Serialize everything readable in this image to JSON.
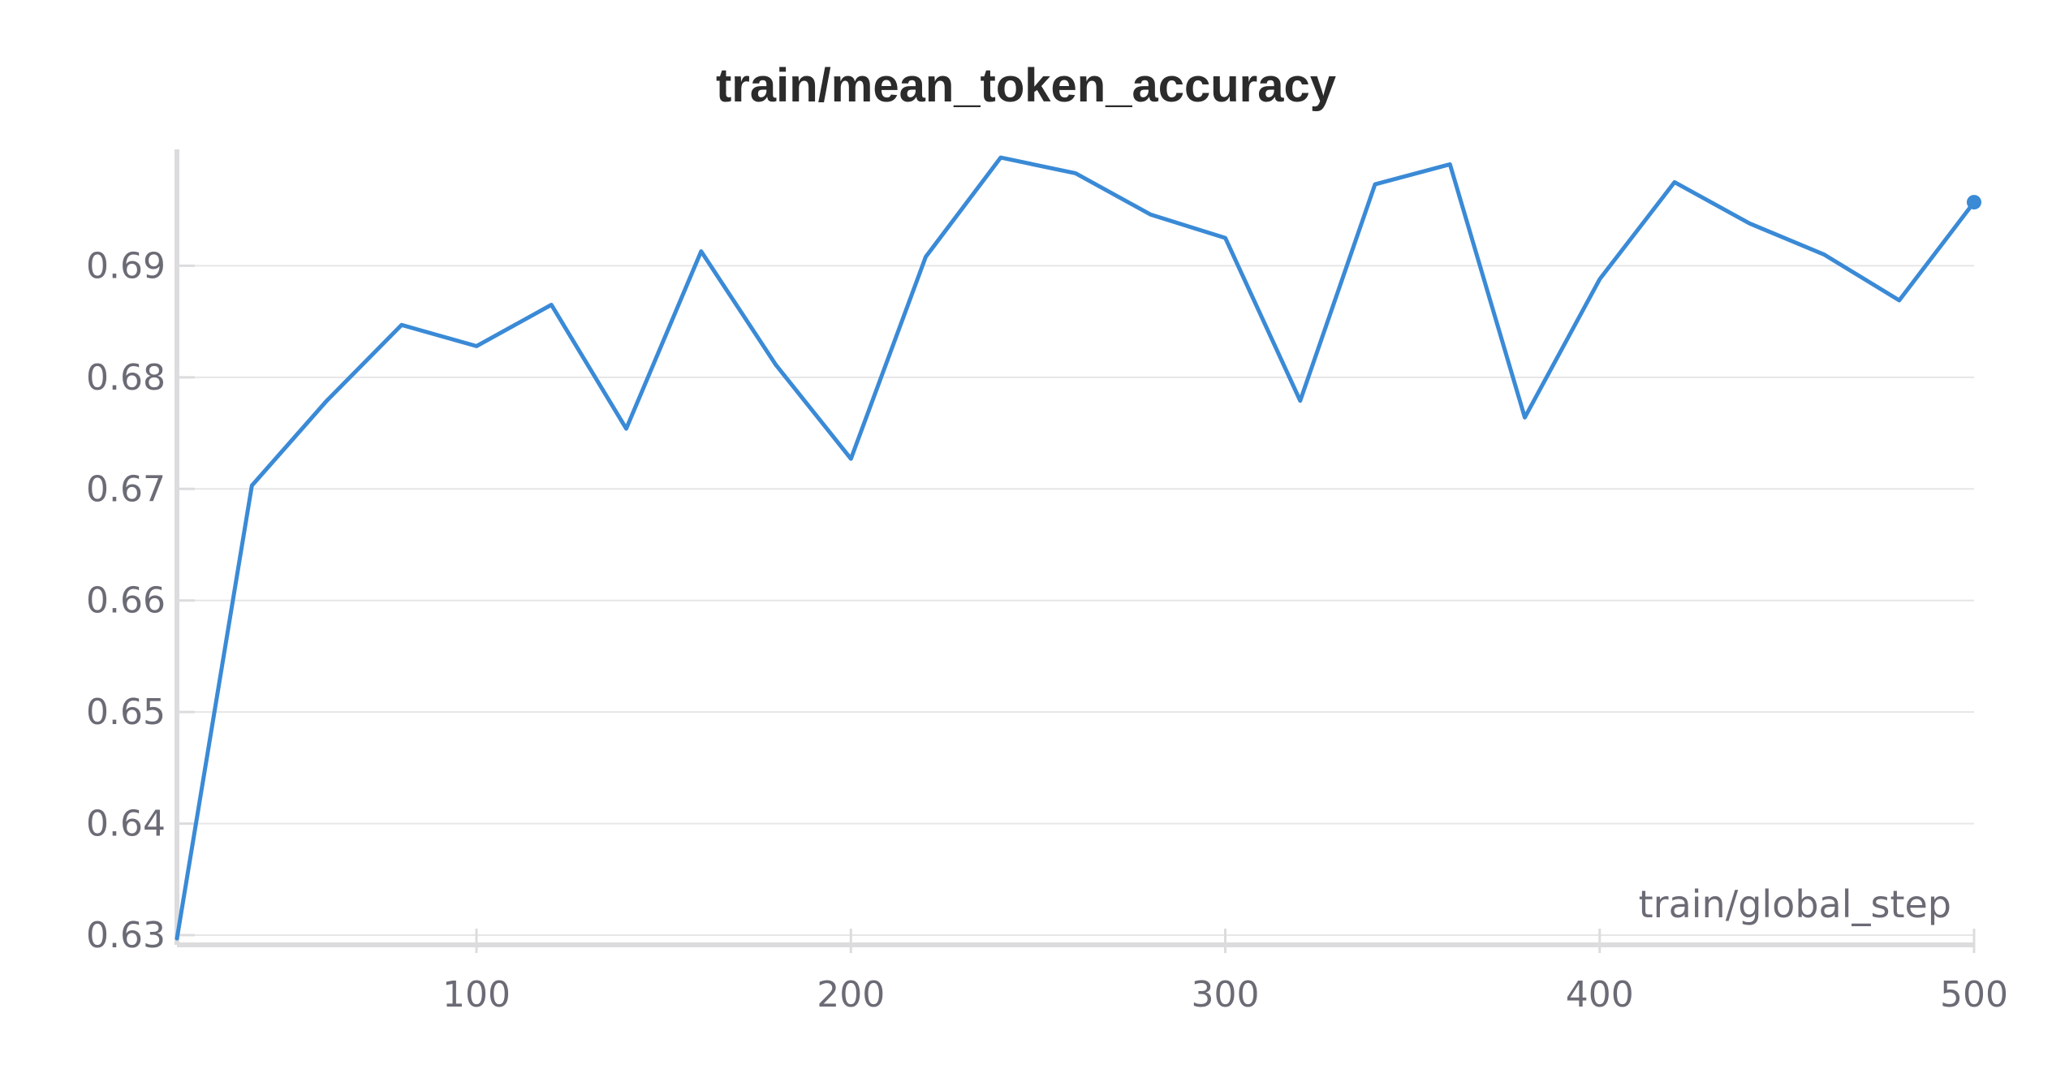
{
  "chart_data": {
    "type": "line",
    "title": "train/mean_token_accuracy",
    "xlabel": "train/global_step",
    "ylabel": "",
    "xlim": [
      20,
      500
    ],
    "ylim": [
      0.63,
      0.7
    ],
    "xticks": [
      100,
      200,
      300,
      400,
      500
    ],
    "yticks": [
      0.63,
      0.64,
      0.65,
      0.66,
      0.67,
      0.68,
      0.69
    ],
    "ytick_labels": [
      "0.63",
      "0.64",
      "0.65",
      "0.66",
      "0.67",
      "0.68",
      "0.69"
    ],
    "xtick_labels": [
      "100",
      "200",
      "300",
      "400",
      "500"
    ],
    "grid": true,
    "series": [
      {
        "color": "#3a8ad6",
        "x": [
          20,
          40,
          60,
          80,
          100,
          120,
          140,
          160,
          180,
          200,
          220,
          240,
          260,
          280,
          300,
          320,
          340,
          360,
          380,
          400,
          420,
          440,
          460,
          480,
          500
        ],
        "y": [
          0.6297,
          0.6703,
          0.6779,
          0.6847,
          0.6828,
          0.6865,
          0.6754,
          0.6913,
          0.6811,
          0.6727,
          0.6908,
          0.6997,
          0.6983,
          0.6946,
          0.6925,
          0.6779,
          0.6973,
          0.6991,
          0.6764,
          0.6888,
          0.6975,
          0.6938,
          0.691,
          0.6869,
          0.6957
        ]
      }
    ]
  }
}
